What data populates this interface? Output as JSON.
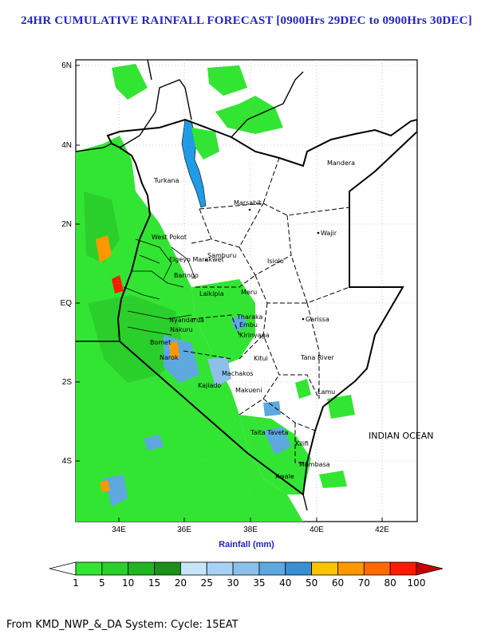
{
  "title": "24HR CUMULATIVE RAINFALL FORECAST [0900Hrs 29DEC to 0900Hrs 30DEC]",
  "axes": {
    "lat_labels": [
      "6N",
      "4N",
      "2N",
      "EQ",
      "2S",
      "4S"
    ],
    "lon_labels": [
      "34E",
      "36E",
      "38E",
      "40E",
      "42E"
    ],
    "xlabel": "Rainfall (mm)"
  },
  "places": [
    {
      "name": "Turkana"
    },
    {
      "name": "Mandera"
    },
    {
      "name": "Marsabit"
    },
    {
      "name": "Wajir"
    },
    {
      "name": "West Pokot"
    },
    {
      "name": "Samburu"
    },
    {
      "name": "Isiolo"
    },
    {
      "name": "Elgeyo Marakwet"
    },
    {
      "name": "Baringo"
    },
    {
      "name": "Laikipia"
    },
    {
      "name": "Meru"
    },
    {
      "name": "Tharaka"
    },
    {
      "name": "Embu"
    },
    {
      "name": "Nyandarua"
    },
    {
      "name": "Nakuru"
    },
    {
      "name": "Kirinyaga"
    },
    {
      "name": "Garissa"
    },
    {
      "name": "Narok"
    },
    {
      "name": "Bomet"
    },
    {
      "name": "Kitui"
    },
    {
      "name": "Tana River"
    },
    {
      "name": "Machakos"
    },
    {
      "name": "Kajiado"
    },
    {
      "name": "Makueni"
    },
    {
      "name": "Lamu"
    },
    {
      "name": "Taita Taveta"
    },
    {
      "name": "Kilifi"
    },
    {
      "name": "Mombasa"
    },
    {
      "name": "Kwale"
    },
    {
      "name": "INDIAN OCEAN"
    }
  ],
  "legend": {
    "ticks": [
      "1",
      "5",
      "10",
      "15",
      "20",
      "25",
      "30",
      "35",
      "40",
      "50",
      "60",
      "70",
      "80",
      "100"
    ],
    "colors": [
      "#ffffff",
      "#33e533",
      "#2bcf2b",
      "#22b522",
      "#1a8f1a",
      "#c6e6fb",
      "#a8d2f5",
      "#8cc0ea",
      "#5ea8e0",
      "#3a8fd2",
      "#ffc300",
      "#ff9800",
      "#ff6a00",
      "#ff1a00",
      "#c80000"
    ]
  },
  "footer": "From KMD_NWP_&_DA System: Cycle: 15EAT"
}
